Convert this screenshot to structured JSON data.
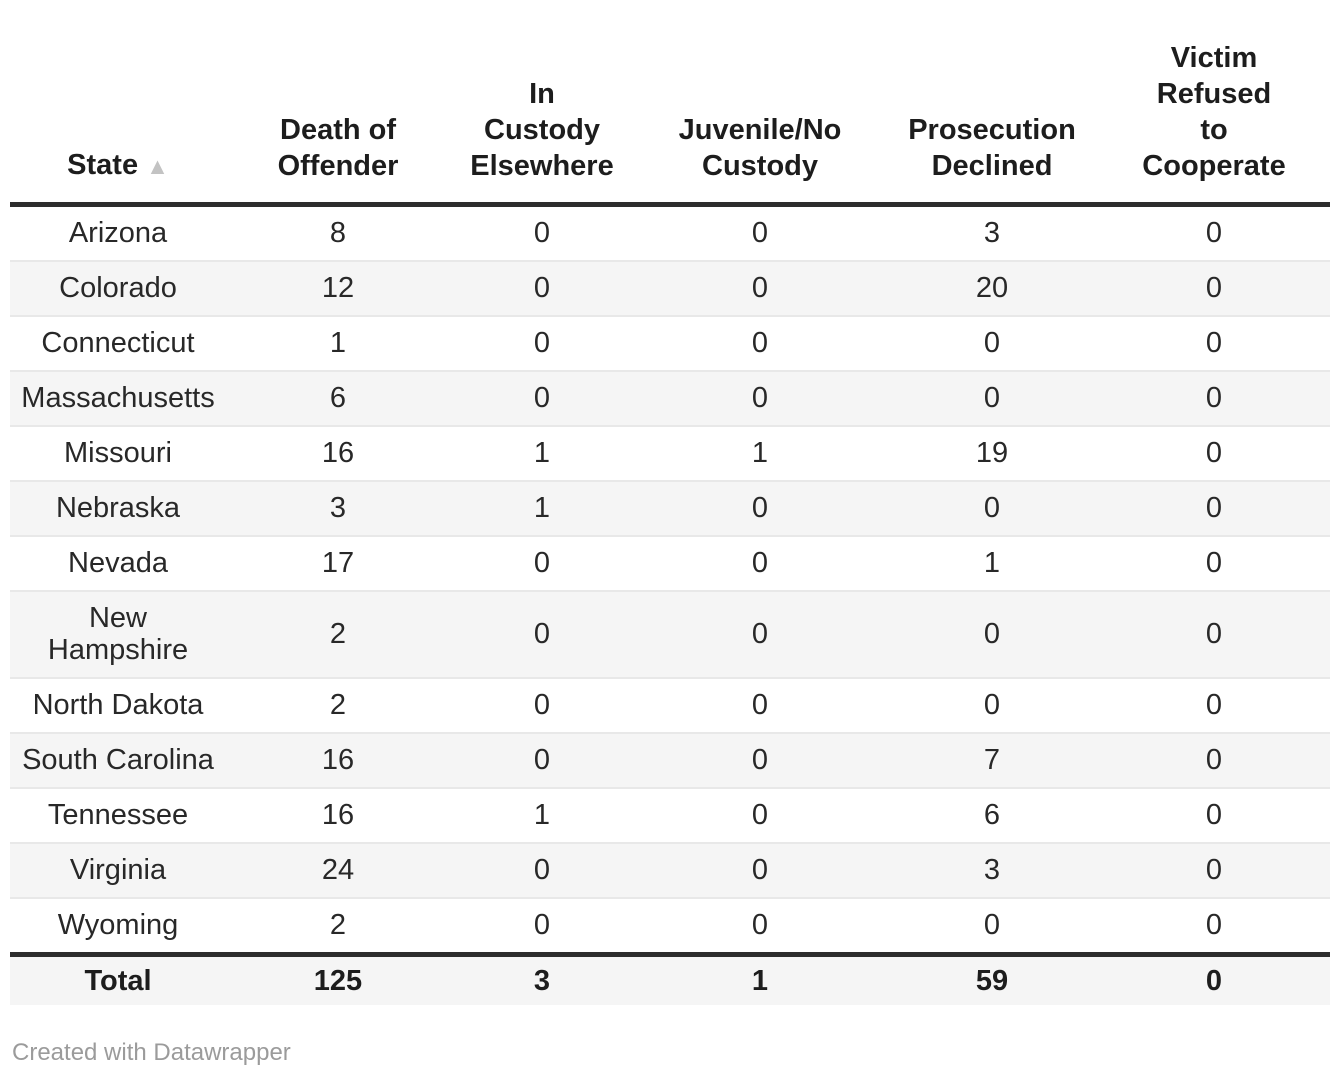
{
  "table": {
    "columns": [
      {
        "label": "State",
        "sort_icon": "▲",
        "sorted": "ascending"
      },
      {
        "label": "Death of Offender",
        "lines": [
          "Death of",
          "Offender"
        ]
      },
      {
        "label": "In Custody Elsewhere",
        "lines": [
          "In",
          "Custody",
          "Elsewhere"
        ]
      },
      {
        "label": "Juvenile/No Custody",
        "lines": [
          "Juvenile/No",
          "Custody"
        ]
      },
      {
        "label": "Prosecution Declined",
        "lines": [
          "Prosecution",
          "Declined"
        ]
      },
      {
        "label": "Victim Refused to Cooperate",
        "lines": [
          "Victim",
          "Refused",
          "to",
          "Cooperate"
        ]
      }
    ],
    "rows": [
      [
        "Arizona",
        "8",
        "0",
        "0",
        "3",
        "0"
      ],
      [
        "Colorado",
        "12",
        "0",
        "0",
        "20",
        "0"
      ],
      [
        "Connecticut",
        "1",
        "0",
        "0",
        "0",
        "0"
      ],
      [
        "Massachusetts",
        "6",
        "0",
        "0",
        "0",
        "0"
      ],
      [
        "Missouri",
        "16",
        "1",
        "1",
        "19",
        "0"
      ],
      [
        "Nebraska",
        "3",
        "1",
        "0",
        "0",
        "0"
      ],
      [
        "Nevada",
        "17",
        "0",
        "0",
        "1",
        "0"
      ],
      [
        "New Hampshire",
        "2",
        "0",
        "0",
        "0",
        "0"
      ],
      [
        "North Dakota",
        "2",
        "0",
        "0",
        "0",
        "0"
      ],
      [
        "South Carolina",
        "16",
        "0",
        "0",
        "7",
        "0"
      ],
      [
        "Tennessee",
        "16",
        "1",
        "0",
        "6",
        "0"
      ],
      [
        "Virginia",
        "24",
        "0",
        "0",
        "3",
        "0"
      ],
      [
        "Wyoming",
        "2",
        "0",
        "0",
        "0",
        "0"
      ]
    ],
    "total_row": [
      "Total",
      "125",
      "3",
      "1",
      "59",
      "0"
    ]
  },
  "footer": {
    "credit": "Created with Datawrapper"
  },
  "colors": {
    "header_text": "#1d1d1d",
    "body_text": "#282828",
    "thick_border": "#2d2d2d",
    "row_separator": "#e8e8e8",
    "stripe_background": "#f5f5f5",
    "sort_icon": "#c3c3c3",
    "credit_text": "#9b9b9b"
  }
}
